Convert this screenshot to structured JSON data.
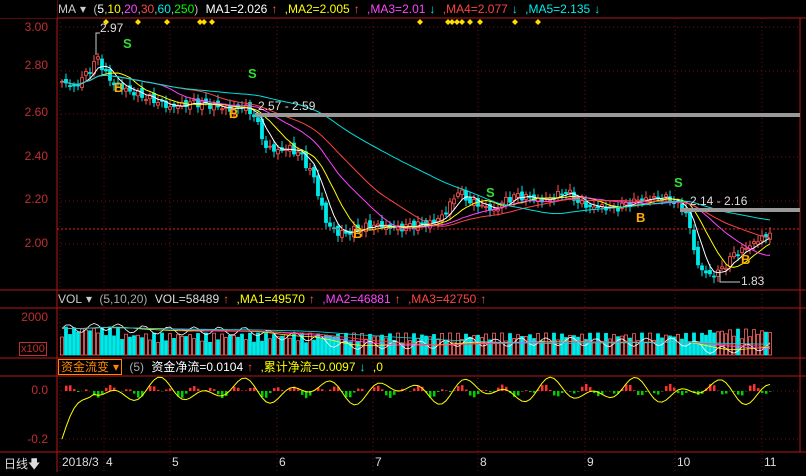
{
  "main": {
    "indicator": "MA",
    "params": [
      "5",
      "10",
      "20",
      "30",
      "60",
      "250"
    ],
    "ma1": "MA1=2.026",
    "ma2": ",MA2=2.005",
    "ma3": ",MA3=2.01",
    "ma4": ",MA4=2.077",
    "ma5": ",MA5=2.135",
    "ma_colors": [
      "#ffffff",
      "#ffff00",
      "#ff44ff",
      "#ff4444",
      "#00e0e0",
      "#00ff00"
    ],
    "price_labels": {
      "high": "2.97",
      "low": "1.83",
      "zone1": "2.57 - 2.59",
      "zone2": "2.14 - 2.16"
    }
  },
  "volume": {
    "indicator": "VOL",
    "params": "(5,10,20)",
    "vol": "VOL=58489",
    "ma1": ",MA1=49570",
    "ma2": ",MA2=46881",
    "ma3": ",MA3=42750",
    "y_label": "2000",
    "unit": "x100"
  },
  "flow": {
    "indicator": "资金流变",
    "param": "(5)",
    "net": "资金净流=0.0104",
    "cum": ",累计净流=0.0097",
    "tail": ",0",
    "y_labels": [
      "0.0",
      "-0.2"
    ]
  },
  "footer": {
    "period": "日线"
  },
  "chart_data": {
    "type": "candlestick",
    "x_ticks": [
      "2018/3",
      "4",
      "5",
      "6",
      "7",
      "8",
      "9",
      "10",
      "11"
    ],
    "y_ticks": [
      "3.00",
      "2.80",
      "2.60",
      "2.40",
      "2.20",
      "2.00"
    ],
    "ylim": [
      1.8,
      3.03
    ],
    "close_samples": [
      2.75,
      2.72,
      2.78,
      2.85,
      2.75,
      2.72,
      2.7,
      2.68,
      2.66,
      2.63,
      2.64,
      2.65,
      2.64,
      2.63,
      2.62,
      2.64,
      2.6,
      2.45,
      2.43,
      2.44,
      2.4,
      2.3,
      2.1,
      2.05,
      2.06,
      2.08,
      2.09,
      2.08,
      2.07,
      2.08,
      2.09,
      2.1,
      2.15,
      2.25,
      2.2,
      2.18,
      2.15,
      2.2,
      2.22,
      2.21,
      2.2,
      2.22,
      2.25,
      2.2,
      2.17,
      2.17,
      2.16,
      2.18,
      2.2,
      2.21,
      2.22,
      2.2,
      2.15,
      1.9,
      1.85,
      1.88,
      1.95,
      1.98,
      2.02,
      2.05
    ],
    "signals": [
      "S",
      "B",
      "S",
      "B",
      "B",
      "S",
      "S",
      "B",
      "B"
    ]
  }
}
